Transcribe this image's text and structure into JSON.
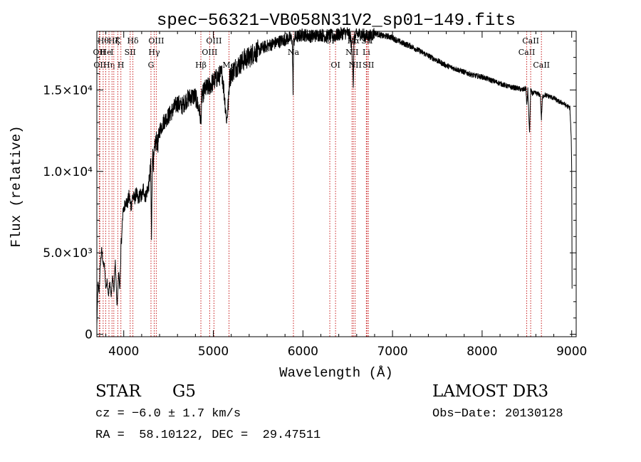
{
  "chart_data": {
    "type": "line",
    "title": "spec−56321−VB058N31V2_sp01−149.fits",
    "xlabel": "Wavelength (Å)",
    "ylabel": "Flux (relative)",
    "xlim": [
      3700,
      9050
    ],
    "ylim": [
      -150,
      18600
    ],
    "xticks": [
      {
        "value": 4000,
        "label": "4000"
      },
      {
        "value": 5000,
        "label": "5000"
      },
      {
        "value": 6000,
        "label": "6000"
      },
      {
        "value": 7000,
        "label": "7000"
      },
      {
        "value": 8000,
        "label": "8000"
      },
      {
        "value": 9000,
        "label": "9000"
      }
    ],
    "yticks": [
      {
        "value": 0,
        "label": "0"
      },
      {
        "value": 5000,
        "label": "5.0×10³"
      },
      {
        "value": 10000,
        "label": "1.0×10⁴"
      },
      {
        "value": 15000,
        "label": "1.5×10⁴"
      }
    ],
    "series": [
      {
        "name": "flux",
        "x": [
          3700,
          3712,
          3725,
          3740,
          3755,
          3770,
          3785,
          3800,
          3815,
          3830,
          3845,
          3860,
          3875,
          3890,
          3905,
          3915,
          3925,
          3935,
          3945,
          3955,
          3965,
          3970,
          3975,
          3985,
          4000,
          4020,
          4040,
          4060,
          4080,
          4100,
          4120,
          4140,
          4160,
          4180,
          4200,
          4220,
          4240,
          4260,
          4280,
          4300,
          4310,
          4320,
          4330,
          4340,
          4350,
          4360,
          4380,
          4400,
          4450,
          4500,
          4550,
          4600,
          4650,
          4700,
          4750,
          4800,
          4850,
          4861,
          4870,
          4900,
          4950,
          5000,
          5050,
          5100,
          5150,
          5170,
          5180,
          5200,
          5250,
          5300,
          5350,
          5400,
          5450,
          5500,
          5550,
          5600,
          5650,
          5700,
          5750,
          5800,
          5850,
          5880,
          5890,
          5896,
          5905,
          5950,
          6000,
          6050,
          6100,
          6150,
          6200,
          6250,
          6300,
          6350,
          6400,
          6450,
          6500,
          6530,
          6555,
          6563,
          6570,
          6600,
          6650,
          6700,
          6750,
          6800,
          6850,
          6900,
          6950,
          7000,
          7100,
          7200,
          7300,
          7400,
          7500,
          7600,
          7700,
          7800,
          7900,
          8000,
          8100,
          8200,
          8300,
          8400,
          8450,
          8490,
          8498,
          8510,
          8530,
          8542,
          8555,
          8600,
          8650,
          8662,
          8675,
          8700,
          8750,
          8800,
          8850,
          8900,
          8950,
          8980,
          8995,
          9000,
          9005
        ],
        "y": [
          600,
          3200,
          2500,
          4400,
          5200,
          4300,
          4200,
          2800,
          3300,
          2400,
          3200,
          2300,
          3600,
          2600,
          4500,
          3200,
          1700,
          2700,
          4000,
          2600,
          4200,
          6000,
          5500,
          7200,
          7600,
          8200,
          8000,
          8500,
          7800,
          8500,
          8300,
          8700,
          8200,
          8600,
          8400,
          9000,
          8400,
          8800,
          9200,
          10300,
          5800,
          11300,
          10500,
          11000,
          11500,
          12000,
          11600,
          12500,
          13100,
          13400,
          13800,
          14200,
          14000,
          14400,
          14600,
          14600,
          13600,
          12900,
          14500,
          15000,
          15200,
          15500,
          15800,
          16000,
          13100,
          14400,
          15700,
          16000,
          16400,
          16600,
          16900,
          17000,
          17300,
          17400,
          17600,
          17700,
          17800,
          17900,
          18000,
          18100,
          18200,
          18100,
          15000,
          17800,
          18200,
          18300,
          18400,
          18350,
          18300,
          18350,
          18400,
          18300,
          18350,
          18300,
          18400,
          18500,
          18500,
          18300,
          16800,
          15100,
          18100,
          18400,
          18450,
          18300,
          18300,
          18500,
          18400,
          18300,
          18300,
          18200,
          17900,
          17700,
          17400,
          17100,
          16800,
          16500,
          16300,
          16100,
          15900,
          15800,
          15600,
          15400,
          15200,
          15100,
          15000,
          15100,
          14000,
          15000,
          12300,
          15000,
          14800,
          14800,
          14700,
          13200,
          14600,
          14700,
          14600,
          14500,
          14300,
          14200,
          14000,
          13900,
          12000,
          10000,
          1000
        ]
      }
    ],
    "lines": [
      {
        "x": 3727,
        "label": "OII",
        "row": 1
      },
      {
        "x": 3734,
        "label": "OII",
        "row": 2
      },
      {
        "x": 3770,
        "label": "Hθ",
        "row": 0
      },
      {
        "x": 3799,
        "label": "He",
        "row": 1
      },
      {
        "x": 3835,
        "label": "Hη",
        "row": 2
      },
      {
        "x": 3869,
        "label": "I",
        "row": 1
      },
      {
        "x": 3889,
        "label": "Hζ",
        "row": 0
      },
      {
        "x": 3934,
        "label": "K",
        "row": 0
      },
      {
        "x": 3968,
        "label": "H",
        "row": 2
      },
      {
        "x": 4072,
        "label": "SII",
        "row": 1
      },
      {
        "x": 4102,
        "label": "Hδ",
        "row": 0
      },
      {
        "x": 4304,
        "label": "G",
        "row": 2
      },
      {
        "x": 4340,
        "label": "Hγ",
        "row": 1
      },
      {
        "x": 4363,
        "label": "OIII",
        "row": 0
      },
      {
        "x": 4861,
        "label": "Hβ",
        "row": 2
      },
      {
        "x": 4959,
        "label": "OIII",
        "row": 1
      },
      {
        "x": 5007,
        "label": "OIII",
        "row": 0
      },
      {
        "x": 5175,
        "label": "Mg",
        "row": 2
      },
      {
        "x": 5894,
        "label": "Na",
        "row": 1
      },
      {
        "x": 6300,
        "label": "OI",
        "row": 0
      },
      {
        "x": 6364,
        "label": "OI",
        "row": 2
      },
      {
        "x": 6548,
        "label": "NII",
        "row": 1
      },
      {
        "x": 6563,
        "label": "Hα",
        "row": 0
      },
      {
        "x": 6583,
        "label": "NII",
        "row": 2
      },
      {
        "x": 6708,
        "label": "Li",
        "row": 1
      },
      {
        "x": 6716,
        "label": "SII",
        "row": 0
      },
      {
        "x": 6731,
        "label": "SII",
        "row": 2
      },
      {
        "x": 8498,
        "label": "CaII",
        "row": 1
      },
      {
        "x": 8542,
        "label": "CaII",
        "row": 0
      },
      {
        "x": 8662,
        "label": "CaII",
        "row": 2
      }
    ]
  },
  "footer": {
    "object_type": "STAR",
    "subclass": "G5",
    "survey": "LAMOST DR3",
    "redshift": "cz = −6.0 ± 1.7 km/s",
    "obs_date": "Obs−Date: 20130128",
    "coords": "RA =  58.10122, DEC =  29.47511"
  }
}
